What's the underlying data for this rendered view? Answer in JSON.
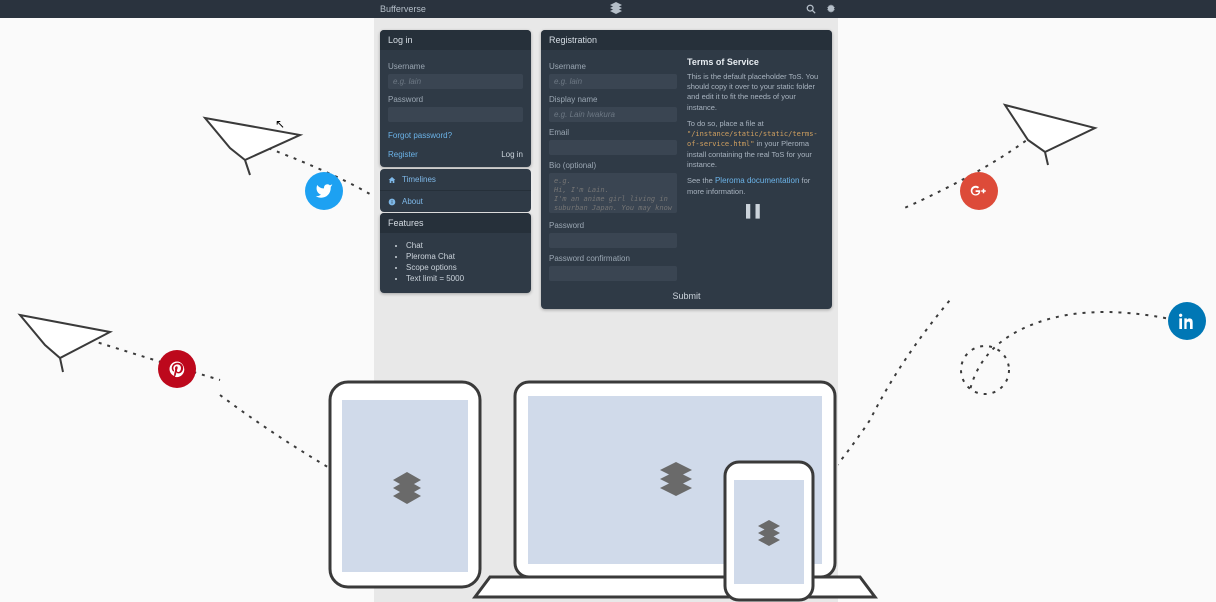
{
  "topbar": {
    "brand": "Bufferverse"
  },
  "login": {
    "title": "Log in",
    "username_label": "Username",
    "username_placeholder": "e.g. lain",
    "password_label": "Password",
    "forgot": "Forgot password?",
    "register": "Register",
    "login_btn": "Log in"
  },
  "nav": {
    "timelines": "Timelines",
    "about": "About"
  },
  "features": {
    "title": "Features",
    "items": [
      "Chat",
      "Pleroma Chat",
      "Scope options",
      "Text limit = 5000"
    ]
  },
  "registration": {
    "title": "Registration",
    "username_label": "Username",
    "username_placeholder": "e.g. lain",
    "displayname_label": "Display name",
    "displayname_placeholder": "e.g. Lain Iwakura",
    "email_label": "Email",
    "bio_label": "Bio (optional)",
    "bio_placeholder": "e.g.\nHi, I'm Lain.\nI'm an anime girl living in suburban Japan. You may know me from the Wired.",
    "password_label": "Password",
    "password_conf_label": "Password confirmation",
    "submit": "Submit"
  },
  "tos": {
    "title": "Terms of Service",
    "p1": "This is the default placeholder ToS. You should copy it over to your static folder and edit it to fit the needs of your instance.",
    "p2a": "To do so, place a file at ",
    "p2code": "\"/instance/static/static/terms-of-service.html\"",
    "p2b": " in your Pleroma install containing the real ToS for your instance.",
    "p3a": "See the ",
    "p3link": "Pleroma documentation",
    "p3b": " for more information."
  },
  "colors": {
    "twitter": "#1da1f2",
    "gplus": "#dd4b39",
    "pinterest": "#bd081c",
    "linkedin": "#0077b5"
  }
}
